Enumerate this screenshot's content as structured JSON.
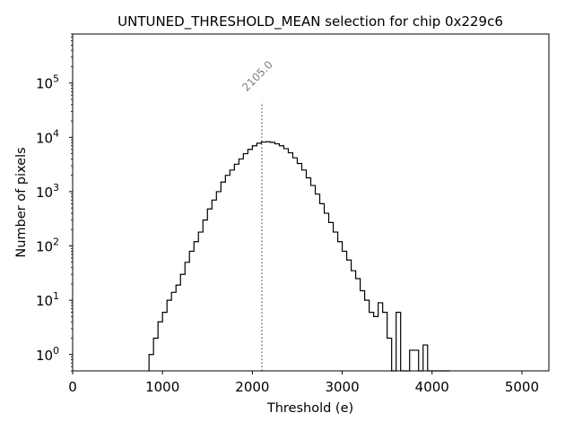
{
  "chart_data": {
    "type": "histogram",
    "title": "UNTUNED_THRESHOLD_MEAN selection for chip 0x229c6",
    "xlabel": "Threshold (e)",
    "ylabel": "Number of pixels",
    "x_scale": "linear",
    "y_scale": "log",
    "xlim": [
      0,
      5300
    ],
    "ylim": [
      0.5,
      800000
    ],
    "x_ticks": [
      0,
      1000,
      2000,
      3000,
      4000,
      5000
    ],
    "x_tick_labels": [
      "0",
      "1000",
      "2000",
      "3000",
      "4000",
      "5000"
    ],
    "y_ticks": [
      1,
      10,
      100,
      1000,
      10000,
      100000
    ],
    "y_tick_labels": [
      {
        "base": "10",
        "exp": "0"
      },
      {
        "base": "10",
        "exp": "1"
      },
      {
        "base": "10",
        "exp": "2"
      },
      {
        "base": "10",
        "exp": "3"
      },
      {
        "base": "10",
        "exp": "4"
      },
      {
        "base": "10",
        "exp": "5"
      }
    ],
    "grid": false,
    "line_color": "#000000",
    "marker_color": "#808080",
    "bin_width": 50,
    "bin_edges_start": 850,
    "counts": [
      1,
      2,
      4,
      6,
      10,
      14,
      19,
      30,
      50,
      80,
      120,
      180,
      300,
      480,
      700,
      1000,
      1500,
      2000,
      2500,
      3200,
      4000,
      5000,
      6000,
      7000,
      7800,
      8200,
      8300,
      8100,
      7600,
      7000,
      6200,
      5200,
      4200,
      3300,
      2500,
      1800,
      1300,
      900,
      600,
      400,
      270,
      180,
      120,
      80,
      55,
      35,
      25,
      15,
      10,
      6,
      5,
      9,
      6,
      2,
      0.3,
      6,
      0.5,
      0.3,
      1.2,
      1.2,
      0.3,
      1.5,
      0.3,
      0.5,
      0.3,
      0.3,
      0.3
    ],
    "threshold_line": {
      "x": 2105.0,
      "label": "2105.0",
      "y_top": 45000,
      "style": "dotted"
    }
  }
}
